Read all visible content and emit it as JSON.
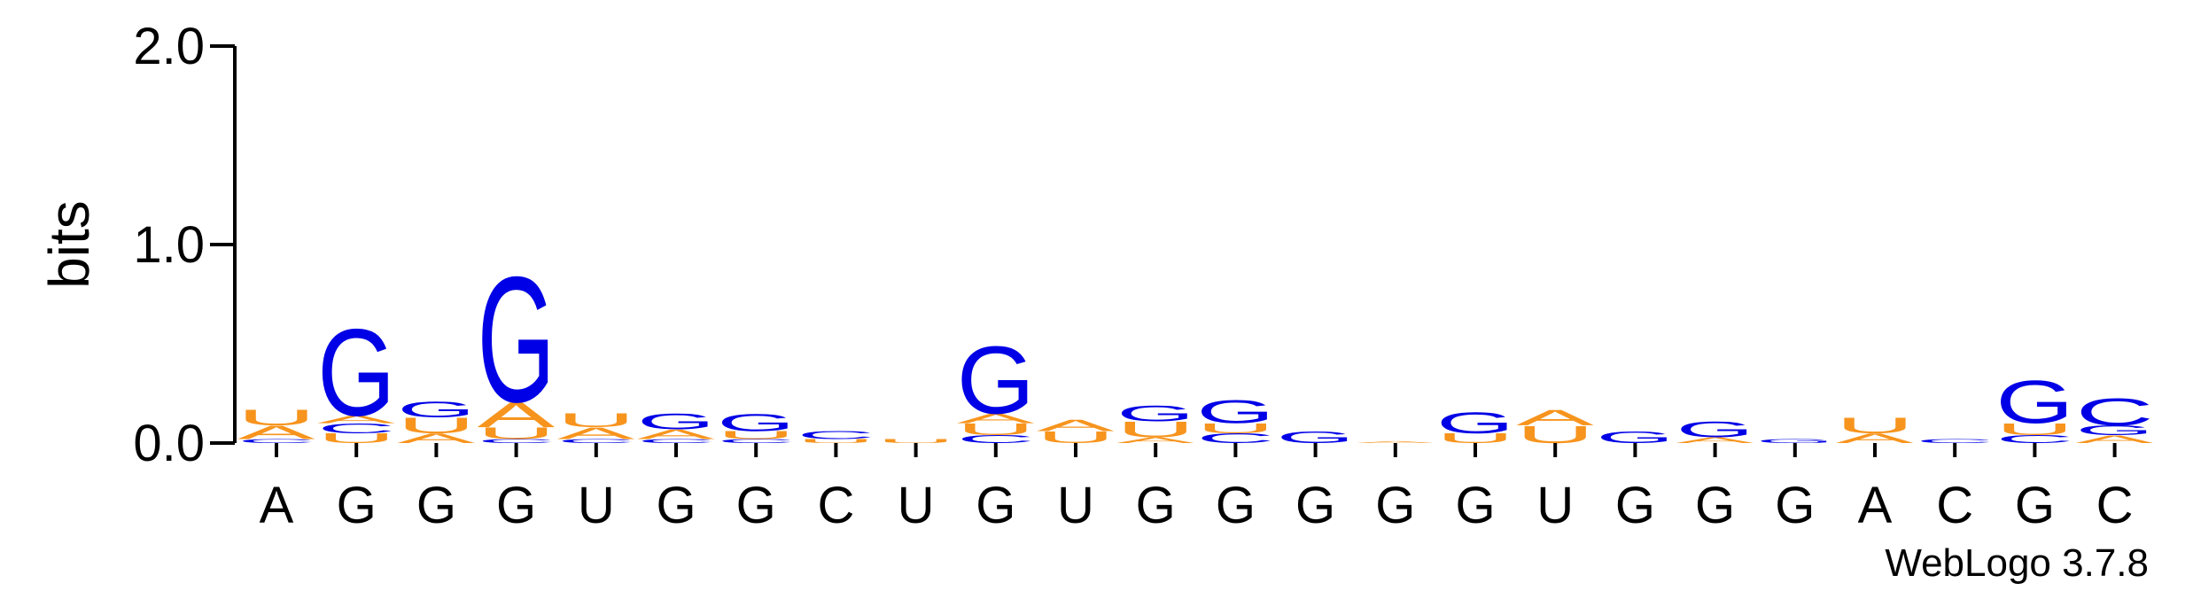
{
  "chart_data": {
    "type": "sequence-logo",
    "ylabel": "bits",
    "ylim": [
      0,
      2.0
    ],
    "yticks": [
      {
        "value": 0.0,
        "label": "0.0"
      },
      {
        "value": 1.0,
        "label": "1.0"
      },
      {
        "value": 2.0,
        "label": "2.0"
      }
    ],
    "credit": "WebLogo 3.7.8",
    "colors": {
      "A": "#f7941d",
      "U": "#f7941d",
      "G": "#0000e6",
      "C": "#0000e6"
    },
    "positions": [
      {
        "label": "A",
        "stack": [
          [
            "C",
            0.02
          ],
          [
            "A",
            0.07
          ],
          [
            "U",
            0.08
          ]
        ]
      },
      {
        "label": "G",
        "stack": [
          [
            "U",
            0.05
          ],
          [
            "C",
            0.05
          ],
          [
            "A",
            0.04
          ],
          [
            "G",
            0.45
          ]
        ]
      },
      {
        "label": "G",
        "stack": [
          [
            "A",
            0.05
          ],
          [
            "U",
            0.08
          ],
          [
            "G",
            0.08
          ]
        ]
      },
      {
        "label": "G",
        "stack": [
          [
            "C",
            0.02
          ],
          [
            "U",
            0.06
          ],
          [
            "A",
            0.13
          ],
          [
            "G",
            0.65
          ]
        ]
      },
      {
        "label": "U",
        "stack": [
          [
            "C",
            0.02
          ],
          [
            "A",
            0.06
          ],
          [
            "U",
            0.07
          ]
        ]
      },
      {
        "label": "G",
        "stack": [
          [
            "C",
            0.02
          ],
          [
            "A",
            0.05
          ],
          [
            "G",
            0.08
          ]
        ]
      },
      {
        "label": "G",
        "stack": [
          [
            "C",
            0.02
          ],
          [
            "U",
            0.04
          ],
          [
            "G",
            0.09
          ]
        ]
      },
      {
        "label": "C",
        "stack": [
          [
            "U",
            0.02
          ],
          [
            "C",
            0.04
          ]
        ]
      },
      {
        "label": "U",
        "stack": [
          [
            "U",
            0.02
          ]
        ]
      },
      {
        "label": "G",
        "stack": [
          [
            "C",
            0.04
          ],
          [
            "U",
            0.06
          ],
          [
            "A",
            0.05
          ],
          [
            "G",
            0.35
          ]
        ]
      },
      {
        "label": "U",
        "stack": [
          [
            "U",
            0.06
          ],
          [
            "A",
            0.06
          ]
        ]
      },
      {
        "label": "G",
        "stack": [
          [
            "A",
            0.03
          ],
          [
            "U",
            0.08
          ],
          [
            "G",
            0.08
          ]
        ]
      },
      {
        "label": "G",
        "stack": [
          [
            "C",
            0.05
          ],
          [
            "U",
            0.05
          ],
          [
            "G",
            0.12
          ]
        ]
      },
      {
        "label": "G",
        "stack": [
          [
            "G",
            0.06
          ]
        ]
      },
      {
        "label": "G",
        "stack": [
          [
            "A",
            0.01
          ]
        ]
      },
      {
        "label": "G",
        "stack": [
          [
            "U",
            0.05
          ],
          [
            "G",
            0.11
          ]
        ]
      },
      {
        "label": "U",
        "stack": [
          [
            "U",
            0.09
          ],
          [
            "A",
            0.08
          ]
        ]
      },
      {
        "label": "G",
        "stack": [
          [
            "G",
            0.06
          ]
        ]
      },
      {
        "label": "G",
        "stack": [
          [
            "A",
            0.03
          ],
          [
            "G",
            0.08
          ]
        ]
      },
      {
        "label": "G",
        "stack": [
          [
            "G",
            0.02
          ]
        ]
      },
      {
        "label": "A",
        "stack": [
          [
            "A",
            0.05
          ],
          [
            "U",
            0.08
          ]
        ]
      },
      {
        "label": "C",
        "stack": [
          [
            "C",
            0.02
          ]
        ]
      },
      {
        "label": "G",
        "stack": [
          [
            "C",
            0.04
          ],
          [
            "U",
            0.06
          ],
          [
            "G",
            0.22
          ]
        ]
      },
      {
        "label": "C",
        "stack": [
          [
            "A",
            0.04
          ],
          [
            "G",
            0.05
          ],
          [
            "C",
            0.14
          ]
        ]
      }
    ]
  }
}
